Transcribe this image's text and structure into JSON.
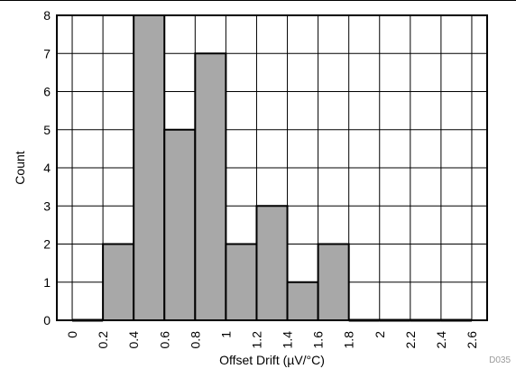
{
  "chart_data": {
    "type": "bar",
    "x_ticks": [
      "0",
      "0.2",
      "0.4",
      "0.6",
      "0.8",
      "1",
      "1.2",
      "1.4",
      "1.6",
      "1.8",
      "2",
      "2.2",
      "2.4",
      "2.6"
    ],
    "y_ticks": [
      "0",
      "1",
      "2",
      "3",
      "4",
      "5",
      "6",
      "7",
      "8"
    ],
    "bins": [
      {
        "x0": 0.0,
        "x1": 0.2,
        "count": 0
      },
      {
        "x0": 0.2,
        "x1": 0.4,
        "count": 2
      },
      {
        "x0": 0.4,
        "x1": 0.6,
        "count": 8
      },
      {
        "x0": 0.6,
        "x1": 0.8,
        "count": 5
      },
      {
        "x0": 0.8,
        "x1": 1.0,
        "count": 7
      },
      {
        "x0": 1.0,
        "x1": 1.2,
        "count": 2
      },
      {
        "x0": 1.2,
        "x1": 1.4,
        "count": 3
      },
      {
        "x0": 1.4,
        "x1": 1.6,
        "count": 1
      },
      {
        "x0": 1.6,
        "x1": 1.8,
        "count": 2
      },
      {
        "x0": 1.8,
        "x1": 2.0,
        "count": 0
      },
      {
        "x0": 2.0,
        "x1": 2.2,
        "count": 0
      },
      {
        "x0": 2.2,
        "x1": 2.4,
        "count": 0
      },
      {
        "x0": 2.4,
        "x1": 2.6,
        "count": 0
      }
    ],
    "xlabel": "Offset Drift (µV/°C)",
    "ylabel": "Count",
    "xlim": [
      -0.1,
      2.7
    ],
    "ylim": [
      0,
      8
    ],
    "grid": true,
    "bar_color": "#a8a8a8",
    "figure_tag": "D035"
  }
}
